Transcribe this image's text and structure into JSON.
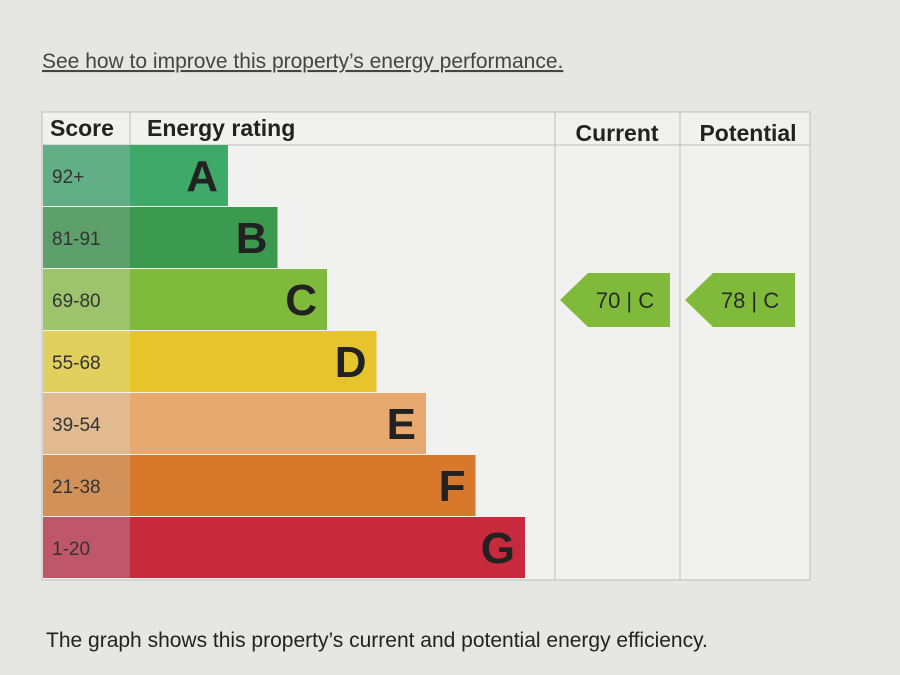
{
  "link": "See how to improve this property’s energy performance.",
  "headers": [
    "Score",
    "Energy rating",
    "Current",
    "Potential"
  ],
  "bands": [
    {
      "score": "92+",
      "letter": "A"
    },
    {
      "score": "81-91",
      "letter": "B"
    },
    {
      "score": "69-80",
      "letter": "C"
    },
    {
      "score": "55-68",
      "letter": "D"
    },
    {
      "score": "39-54",
      "letter": "E"
    },
    {
      "score": "21-38",
      "letter": "F"
    },
    {
      "score": "1-20",
      "letter": "G"
    }
  ],
  "current": "70 | C",
  "potential": "78 | C",
  "caption": "The graph shows this property’s current and potential energy efficiency."
}
